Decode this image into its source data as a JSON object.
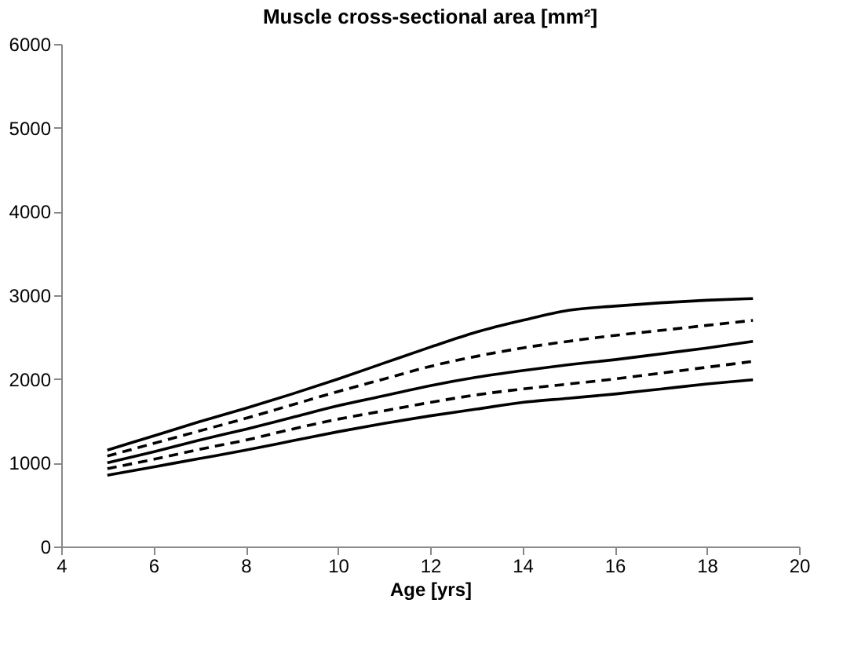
{
  "chart_data": {
    "type": "line",
    "title": "Muscle cross-sectional area [mm²]",
    "xlabel": "Age [yrs]",
    "x": [
      5,
      6,
      7,
      8,
      9,
      10,
      11,
      12,
      13,
      14,
      15,
      16,
      17,
      18,
      19
    ],
    "series": [
      {
        "color": "#000000",
        "line_style": "solid",
        "values": [
          1150,
          1320,
          1490,
          1650,
          1820,
          2000,
          2190,
          2380,
          2560,
          2700,
          2820,
          2870,
          2910,
          2940,
          2960
        ]
      },
      {
        "color": "#000000",
        "line_style": "dashed",
        "values": [
          1080,
          1230,
          1380,
          1530,
          1690,
          1850,
          2000,
          2150,
          2270,
          2370,
          2450,
          2520,
          2580,
          2640,
          2700
        ]
      },
      {
        "color": "#000000",
        "line_style": "solid",
        "values": [
          1000,
          1130,
          1270,
          1400,
          1540,
          1680,
          1800,
          1920,
          2020,
          2100,
          2170,
          2230,
          2300,
          2370,
          2450
        ]
      },
      {
        "color": "#000000",
        "line_style": "dashed",
        "values": [
          930,
          1040,
          1160,
          1270,
          1400,
          1520,
          1620,
          1720,
          1810,
          1880,
          1940,
          2000,
          2070,
          2140,
          2210
        ]
      },
      {
        "color": "#000000",
        "line_style": "solid",
        "values": [
          850,
          950,
          1050,
          1150,
          1260,
          1370,
          1470,
          1560,
          1640,
          1720,
          1770,
          1820,
          1880,
          1940,
          1990
        ]
      }
    ],
    "xlim": [
      4,
      20
    ],
    "xticks": [
      4,
      6,
      8,
      10,
      12,
      14,
      16,
      18,
      20
    ],
    "ylim": [
      0,
      6000
    ],
    "yticks": [
      0,
      1000,
      2000,
      3000,
      4000,
      5000,
      6000
    ],
    "grid": false,
    "marker": "none"
  }
}
